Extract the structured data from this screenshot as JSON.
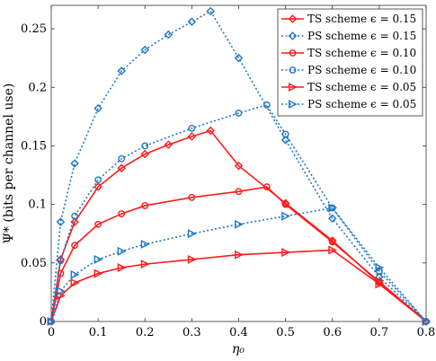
{
  "chart_data": {
    "type": "line",
    "xlabel": "η₀",
    "ylabel": "Ψ* (bits per channel use)",
    "xlim": [
      0,
      0.8
    ],
    "ylim": [
      0,
      0.27
    ],
    "xticks": [
      "0",
      "0.1",
      "0.2",
      "0.3",
      "0.4",
      "0.5",
      "0.6",
      "0.7",
      "0.8"
    ],
    "yticks": [
      "0",
      "0.05",
      "0.1",
      "0.15",
      "0.2",
      "0.25"
    ],
    "grid": false,
    "legend_position": "top-right",
    "colors": {
      "red": "#ff1a1a",
      "blue": "#1f77c4"
    },
    "series": [
      {
        "name": "TS scheme ϵ = 0.15",
        "color": "#ff1a1a",
        "marker": "diamond",
        "dashed": false,
        "x": [
          0,
          0.02,
          0.05,
          0.1,
          0.15,
          0.2,
          0.25,
          0.3,
          0.34,
          0.4,
          0.5,
          0.6,
          0.7,
          0.8
        ],
        "y": [
          0,
          0.053,
          0.085,
          0.115,
          0.131,
          0.143,
          0.151,
          0.158,
          0.163,
          0.133,
          0.101,
          0.069,
          0.033,
          0
        ]
      },
      {
        "name": "PS scheme ϵ = 0.15",
        "color": "#1f77c4",
        "marker": "diamond",
        "dashed": true,
        "x": [
          0,
          0.02,
          0.05,
          0.1,
          0.15,
          0.2,
          0.25,
          0.3,
          0.34,
          0.4,
          0.5,
          0.6,
          0.7,
          0.8
        ],
        "y": [
          0,
          0.085,
          0.135,
          0.182,
          0.214,
          0.232,
          0.245,
          0.256,
          0.265,
          0.225,
          0.155,
          0.088,
          0.038,
          0
        ]
      },
      {
        "name": "TS scheme ϵ = 0.10",
        "color": "#ff1a1a",
        "marker": "circle",
        "dashed": false,
        "x": [
          0,
          0.02,
          0.05,
          0.1,
          0.15,
          0.2,
          0.3,
          0.4,
          0.46,
          0.5,
          0.6,
          0.7,
          0.8
        ],
        "y": [
          0,
          0.041,
          0.065,
          0.083,
          0.092,
          0.099,
          0.106,
          0.111,
          0.115,
          0.1,
          0.068,
          0.034,
          0
        ]
      },
      {
        "name": "PS scheme ϵ = 0.10",
        "color": "#1f77c4",
        "marker": "circle",
        "dashed": true,
        "x": [
          0,
          0.02,
          0.05,
          0.1,
          0.15,
          0.2,
          0.3,
          0.4,
          0.46,
          0.5,
          0.6,
          0.7,
          0.8
        ],
        "y": [
          0,
          0.052,
          0.09,
          0.121,
          0.139,
          0.15,
          0.165,
          0.178,
          0.185,
          0.16,
          0.097,
          0.043,
          0
        ]
      },
      {
        "name": "TS scheme ϵ = 0.05",
        "color": "#ff1a1a",
        "marker": "triangle",
        "dashed": false,
        "x": [
          0,
          0.02,
          0.05,
          0.1,
          0.15,
          0.2,
          0.3,
          0.4,
          0.5,
          0.6,
          0.7,
          0.8
        ],
        "y": [
          0,
          0.022,
          0.033,
          0.041,
          0.046,
          0.049,
          0.053,
          0.057,
          0.059,
          0.061,
          0.032,
          0
        ]
      },
      {
        "name": "PS scheme ϵ = 0.05",
        "color": "#1f77c4",
        "marker": "triangle",
        "dashed": true,
        "x": [
          0,
          0.02,
          0.05,
          0.1,
          0.15,
          0.2,
          0.3,
          0.4,
          0.5,
          0.6,
          0.7,
          0.8
        ],
        "y": [
          0,
          0.026,
          0.04,
          0.053,
          0.06,
          0.066,
          0.075,
          0.083,
          0.09,
          0.097,
          0.046,
          0
        ]
      }
    ]
  }
}
